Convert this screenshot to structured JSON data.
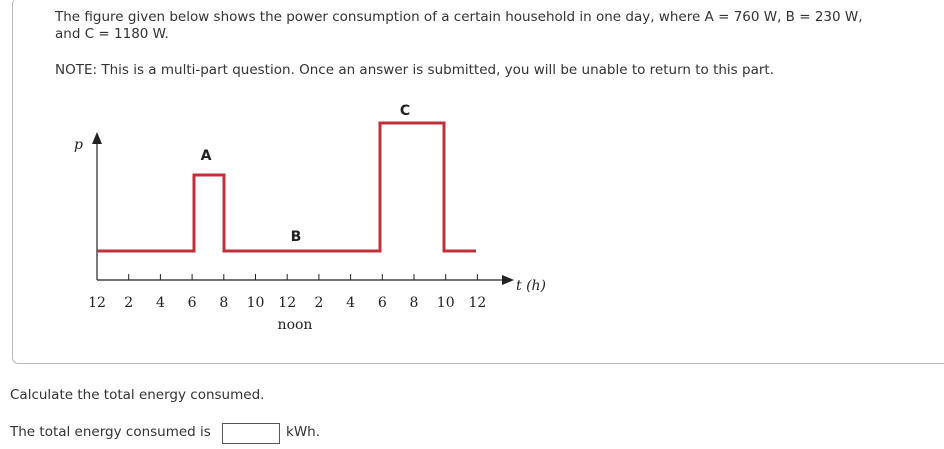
{
  "question": {
    "lines": [
      "The figure given below shows the power consumption of a certain household in one day, where A = 760 W, B = 230 W,",
      "and C = 1180 W."
    ],
    "note": "NOTE: This is a multi-part question. Once an answer is submitted, you will be unable to return to this part."
  },
  "figure": {
    "y_axis_label": "p",
    "x_axis_label": "t (h)",
    "tick_labels": [
      "12",
      "2",
      "4",
      "6",
      "8",
      "10",
      "12",
      "2",
      "4",
      "6",
      "8",
      "10",
      "12"
    ],
    "noon_label": "noon",
    "segment_labels": [
      "A",
      "B",
      "C"
    ]
  },
  "part": {
    "prompt": "Calculate the total energy consumed.",
    "answer_prefix": "The total energy consumed is",
    "answer_unit": "kWh."
  }
}
